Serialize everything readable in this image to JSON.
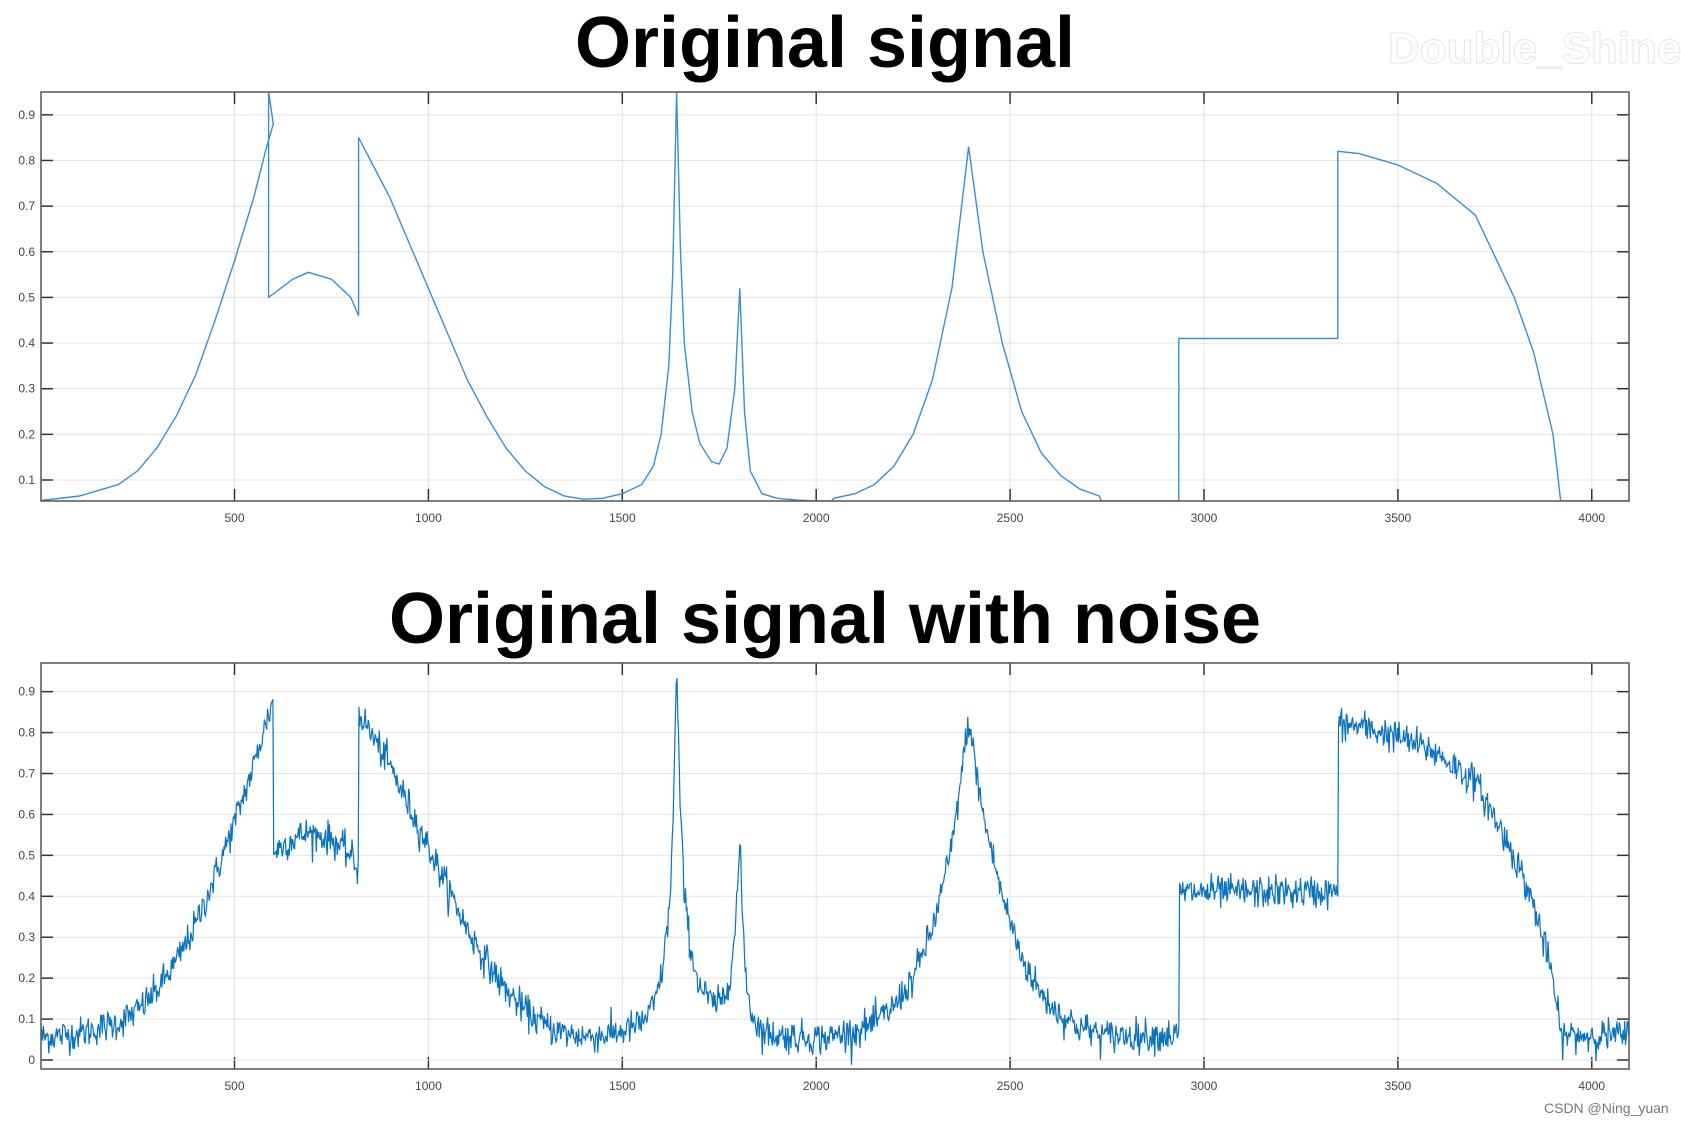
{
  "watermark": "Double_Shine",
  "credit": "CSDN @Ning_yuan",
  "colors": {
    "signal": "#3a8fd0",
    "noisy": "#0b72bd",
    "grid": "#e3e3e3",
    "axis": "#333333"
  },
  "chart_data": [
    {
      "type": "line",
      "title": "Original signal",
      "xlim": [
        1,
        4096
      ],
      "ylim": [
        0.054,
        0.95
      ],
      "grid": true,
      "xticks": [
        500,
        1000,
        1500,
        2000,
        2500,
        3000,
        3500,
        4000
      ],
      "yticks": [
        0.1,
        0.2,
        0.3,
        0.4,
        0.5,
        0.6,
        0.7,
        0.8,
        0.9
      ],
      "noise": false,
      "x": [
        1,
        100,
        200,
        250,
        300,
        350,
        400,
        450,
        500,
        550,
        580,
        600,
        588,
        588,
        650,
        690,
        750,
        800,
        820,
        820,
        900,
        1000,
        1050,
        1100,
        1150,
        1200,
        1250,
        1300,
        1350,
        1400,
        1450,
        1500,
        1550,
        1580,
        1600,
        1620,
        1630,
        1640,
        1650,
        1660,
        1680,
        1700,
        1730,
        1750,
        1770,
        1790,
        1803,
        1815,
        1830,
        1860,
        1900,
        1950,
        2000,
        2040,
        2045,
        2100,
        2150,
        2200,
        2250,
        2300,
        2350,
        2393,
        2430,
        2480,
        2530,
        2580,
        2630,
        2680,
        2730,
        2735,
        2935,
        2935,
        3345,
        3345,
        3400,
        3500,
        3600,
        3700,
        3800,
        3850,
        3900,
        3920,
        4096
      ],
      "y": [
        0.055,
        0.065,
        0.09,
        0.12,
        0.17,
        0.24,
        0.33,
        0.45,
        0.58,
        0.72,
        0.82,
        0.88,
        0.95,
        0.5,
        0.54,
        0.555,
        0.54,
        0.5,
        0.46,
        0.85,
        0.72,
        0.52,
        0.42,
        0.32,
        0.24,
        0.17,
        0.12,
        0.085,
        0.065,
        0.058,
        0.06,
        0.07,
        0.09,
        0.13,
        0.2,
        0.35,
        0.55,
        0.95,
        0.6,
        0.4,
        0.25,
        0.18,
        0.14,
        0.135,
        0.17,
        0.3,
        0.52,
        0.25,
        0.12,
        0.07,
        0.06,
        0.056,
        0.054,
        0.054,
        0.06,
        0.07,
        0.09,
        0.13,
        0.2,
        0.32,
        0.52,
        0.83,
        0.6,
        0.4,
        0.25,
        0.16,
        0.11,
        0.08,
        0.065,
        0.054,
        0.054,
        0.41,
        0.41,
        0.82,
        0.815,
        0.79,
        0.75,
        0.68,
        0.5,
        0.38,
        0.2,
        0.054,
        0.054
      ]
    },
    {
      "type": "line",
      "title": "Original signal with noise",
      "xlim": [
        1,
        4096
      ],
      "ylim": [
        -0.022,
        0.97
      ],
      "grid": true,
      "xticks": [
        500,
        1000,
        1500,
        2000,
        2500,
        3000,
        3500,
        4000
      ],
      "yticks": [
        0,
        0.1,
        0.2,
        0.3,
        0.4,
        0.5,
        0.6,
        0.7,
        0.8,
        0.9
      ],
      "noise": true
    }
  ]
}
